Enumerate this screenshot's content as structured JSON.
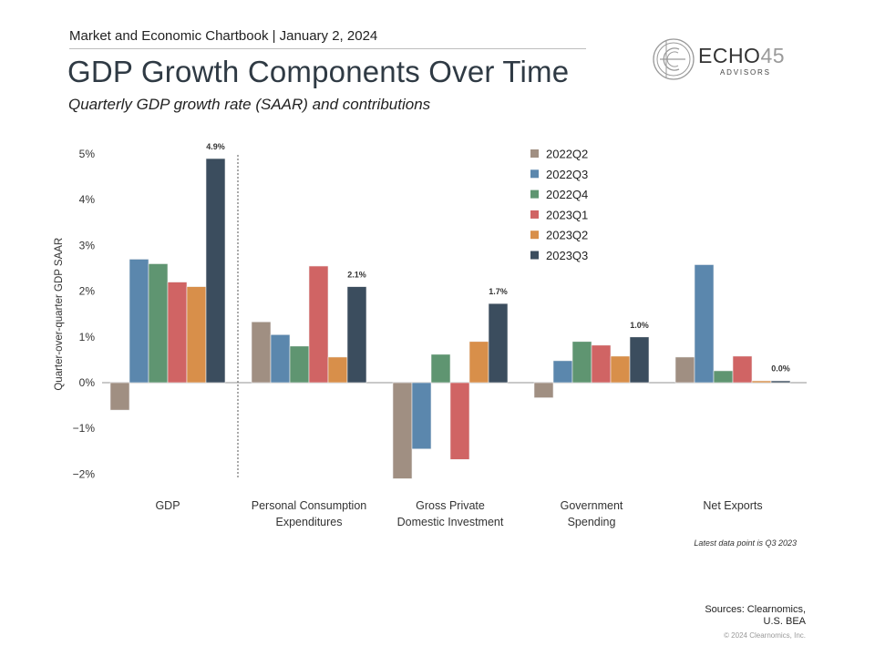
{
  "header": {
    "chartbook_line": "Market and Economic Chartbook | January 2, 2024",
    "title": "GDP Growth Components Over Time",
    "subtitle": "Quarterly GDP growth rate (SAAR) and contributions"
  },
  "logo": {
    "brand": "ECHO",
    "brand_number": "45",
    "tagline": "ADVISORS",
    "icon": "circle-e-monogram-icon"
  },
  "chart_data": {
    "type": "bar",
    "title": "GDP Growth Components Over Time",
    "xlabel": "",
    "ylabel": "Quarter-over-quarter GDP SAAR",
    "ylim": [
      -2,
      5
    ],
    "yticks": [
      5,
      4,
      3,
      2,
      1,
      0,
      -1,
      -2
    ],
    "ytick_labels": [
      "5%",
      "4%",
      "3%",
      "2%",
      "1%",
      "0%",
      "−1%",
      "−2%"
    ],
    "grid": false,
    "legend_position": "top-right",
    "categories": [
      "GDP",
      "Personal Consumption\nExpenditures",
      "Gross Private\nDomestic Investment",
      "Government\nSpending",
      "Net Exports"
    ],
    "series": [
      {
        "name": "2022Q2",
        "color": "#a08f82",
        "values": [
          -0.6,
          1.33,
          -2.1,
          -0.33,
          0.56
        ]
      },
      {
        "name": "2022Q3",
        "color": "#5b87ad",
        "values": [
          2.7,
          1.05,
          -1.45,
          0.48,
          2.58
        ]
      },
      {
        "name": "2022Q4",
        "color": "#5f9571",
        "values": [
          2.6,
          0.8,
          0.62,
          0.9,
          0.26
        ]
      },
      {
        "name": "2023Q1",
        "color": "#d06464",
        "values": [
          2.2,
          2.55,
          -1.68,
          0.82,
          0.58
        ]
      },
      {
        "name": "2023Q2",
        "color": "#d88f4a",
        "values": [
          2.1,
          0.56,
          0.9,
          0.58,
          0.04
        ]
      },
      {
        "name": "2023Q3",
        "color": "#3b4d5e",
        "values": [
          4.9,
          2.1,
          1.73,
          1.0,
          0.03
        ]
      }
    ],
    "data_labels": [
      {
        "category": "GDP",
        "series": "2023Q3",
        "text": "4.9%"
      },
      {
        "category": "Personal Consumption\nExpenditures",
        "series": "2023Q3",
        "text": "2.1%"
      },
      {
        "category": "Gross Private\nDomestic Investment",
        "series": "2023Q3",
        "text": "1.7%"
      },
      {
        "category": "Government\nSpending",
        "series": "2023Q3",
        "text": "1.0%"
      },
      {
        "category": "Net Exports",
        "series": "2023Q3",
        "text": "0.0%"
      }
    ],
    "separator_after_category": "GDP"
  },
  "footer": {
    "note": "Latest data point is Q3 2023",
    "sources_line1": "Sources: Clearnomics,",
    "sources_line2": "U.S. BEA",
    "copyright": "© 2024 Clearnomics, Inc."
  }
}
